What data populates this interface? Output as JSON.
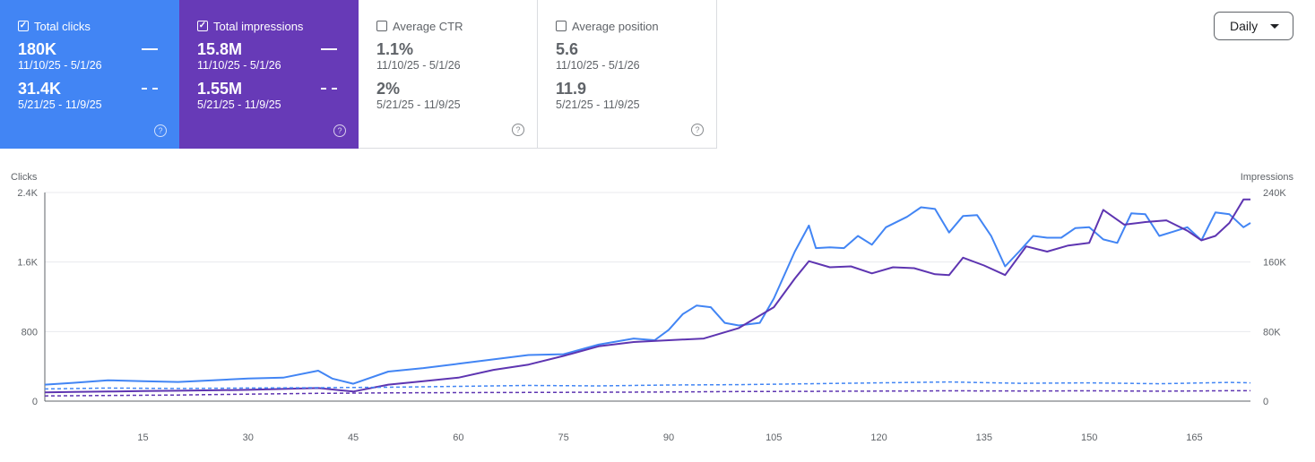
{
  "colors": {
    "clicks": "#4285f4",
    "impressions": "#5e35b1",
    "clicks_card": "#4285f4",
    "impressions_card": "#673ab7"
  },
  "cards": [
    {
      "label": "Total clicks",
      "checked": true,
      "value1": "180K",
      "range1": "11/10/25 - 5/1/26",
      "value2": "31.4K",
      "range2": "5/21/25 - 11/9/25"
    },
    {
      "label": "Total impressions",
      "checked": true,
      "value1": "15.8M",
      "range1": "11/10/25 - 5/1/26",
      "value2": "1.55M",
      "range2": "5/21/25 - 11/9/25"
    },
    {
      "label": "Average CTR",
      "checked": false,
      "value1": "1.1%",
      "range1": "11/10/25 - 5/1/26",
      "value2": "2%",
      "range2": "5/21/25 - 11/9/25"
    },
    {
      "label": "Average position",
      "checked": false,
      "value1": "5.6",
      "range1": "11/10/25 - 5/1/26",
      "value2": "11.9",
      "range2": "5/21/25 - 11/9/25"
    }
  ],
  "daily_label": "Daily",
  "chart_data": {
    "type": "line",
    "y_left_label": "Clicks",
    "y_right_label": "Impressions",
    "y_left_ticks": [
      "0",
      "800",
      "1.6K",
      "2.4K"
    ],
    "y_right_ticks": [
      "0",
      "80K",
      "160K",
      "240K"
    ],
    "ylim_left": [
      0,
      2400
    ],
    "ylim_right": [
      0,
      240000
    ],
    "x_ticks": [
      "15",
      "30",
      "45",
      "60",
      "75",
      "90",
      "105",
      "120",
      "135",
      "150",
      "165"
    ],
    "xlim": [
      1,
      173
    ],
    "series": [
      {
        "key": "clicks_current",
        "axis": "left",
        "style": "solid",
        "points": [
          [
            1,
            190
          ],
          [
            5,
            210
          ],
          [
            10,
            240
          ],
          [
            15,
            230
          ],
          [
            20,
            220
          ],
          [
            25,
            240
          ],
          [
            30,
            260
          ],
          [
            35,
            270
          ],
          [
            40,
            350
          ],
          [
            42,
            260
          ],
          [
            45,
            200
          ],
          [
            50,
            340
          ],
          [
            55,
            380
          ],
          [
            60,
            430
          ],
          [
            65,
            480
          ],
          [
            70,
            530
          ],
          [
            75,
            540
          ],
          [
            80,
            650
          ],
          [
            85,
            720
          ],
          [
            88,
            700
          ],
          [
            90,
            820
          ],
          [
            92,
            1000
          ],
          [
            94,
            1100
          ],
          [
            96,
            1080
          ],
          [
            98,
            900
          ],
          [
            100,
            870
          ],
          [
            103,
            900
          ],
          [
            105,
            1180
          ],
          [
            108,
            1720
          ],
          [
            110,
            2020
          ],
          [
            111,
            1760
          ],
          [
            113,
            1770
          ],
          [
            115,
            1760
          ],
          [
            117,
            1900
          ],
          [
            119,
            1800
          ],
          [
            121,
            2000
          ],
          [
            124,
            2120
          ],
          [
            126,
            2230
          ],
          [
            128,
            2210
          ],
          [
            130,
            1940
          ],
          [
            132,
            2130
          ],
          [
            134,
            2140
          ],
          [
            136,
            1900
          ],
          [
            138,
            1550
          ],
          [
            140,
            1720
          ],
          [
            142,
            1900
          ],
          [
            144,
            1880
          ],
          [
            146,
            1880
          ],
          [
            148,
            1990
          ],
          [
            150,
            2000
          ],
          [
            152,
            1860
          ],
          [
            154,
            1820
          ],
          [
            156,
            2160
          ],
          [
            158,
            2150
          ],
          [
            160,
            1900
          ],
          [
            162,
            1950
          ],
          [
            164,
            2000
          ],
          [
            166,
            1850
          ],
          [
            168,
            2170
          ],
          [
            170,
            2150
          ],
          [
            172,
            2000
          ],
          [
            173,
            2050
          ]
        ]
      },
      {
        "key": "impressions_current",
        "axis": "right",
        "style": "solid",
        "points": [
          [
            1,
            10000
          ],
          [
            5,
            10500
          ],
          [
            10,
            11000
          ],
          [
            15,
            11500
          ],
          [
            20,
            12000
          ],
          [
            25,
            12500
          ],
          [
            30,
            13000
          ],
          [
            35,
            14000
          ],
          [
            40,
            15000
          ],
          [
            45,
            11000
          ],
          [
            50,
            19000
          ],
          [
            55,
            23000
          ],
          [
            60,
            27000
          ],
          [
            65,
            36000
          ],
          [
            70,
            42000
          ],
          [
            75,
            52000
          ],
          [
            80,
            63000
          ],
          [
            85,
            68000
          ],
          [
            90,
            70000
          ],
          [
            95,
            72000
          ],
          [
            100,
            84000
          ],
          [
            105,
            108000
          ],
          [
            108,
            141000
          ],
          [
            110,
            161000
          ],
          [
            113,
            154000
          ],
          [
            116,
            155000
          ],
          [
            119,
            147000
          ],
          [
            122,
            154000
          ],
          [
            125,
            153000
          ],
          [
            128,
            146000
          ],
          [
            130,
            145000
          ],
          [
            132,
            165000
          ],
          [
            135,
            156000
          ],
          [
            138,
            145000
          ],
          [
            141,
            178000
          ],
          [
            144,
            172000
          ],
          [
            147,
            179000
          ],
          [
            150,
            182000
          ],
          [
            152,
            220000
          ],
          [
            155,
            203000
          ],
          [
            158,
            206000
          ],
          [
            161,
            208000
          ],
          [
            164,
            196000
          ],
          [
            166,
            185000
          ],
          [
            168,
            190000
          ],
          [
            170,
            205000
          ],
          [
            172,
            232000
          ],
          [
            173,
            232000
          ]
        ]
      },
      {
        "key": "clicks_previous",
        "axis": "left",
        "style": "dashed",
        "points": [
          [
            1,
            140
          ],
          [
            10,
            150
          ],
          [
            20,
            145
          ],
          [
            30,
            150
          ],
          [
            40,
            155
          ],
          [
            50,
            160
          ],
          [
            60,
            170
          ],
          [
            70,
            180
          ],
          [
            80,
            175
          ],
          [
            90,
            185
          ],
          [
            100,
            190
          ],
          [
            110,
            200
          ],
          [
            120,
            210
          ],
          [
            130,
            220
          ],
          [
            140,
            205
          ],
          [
            150,
            210
          ],
          [
            160,
            200
          ],
          [
            170,
            215
          ],
          [
            173,
            210
          ]
        ]
      },
      {
        "key": "impressions_previous",
        "axis": "right",
        "style": "dashed",
        "points": [
          [
            1,
            6000
          ],
          [
            10,
            6500
          ],
          [
            20,
            7000
          ],
          [
            30,
            8000
          ],
          [
            40,
            9000
          ],
          [
            50,
            9500
          ],
          [
            60,
            9800
          ],
          [
            70,
            10000
          ],
          [
            80,
            10200
          ],
          [
            90,
            10500
          ],
          [
            100,
            11000
          ],
          [
            110,
            11200
          ],
          [
            120,
            11500
          ],
          [
            130,
            11800
          ],
          [
            140,
            11600
          ],
          [
            150,
            11800
          ],
          [
            160,
            11400
          ],
          [
            170,
            12000
          ],
          [
            173,
            11900
          ]
        ]
      }
    ]
  }
}
